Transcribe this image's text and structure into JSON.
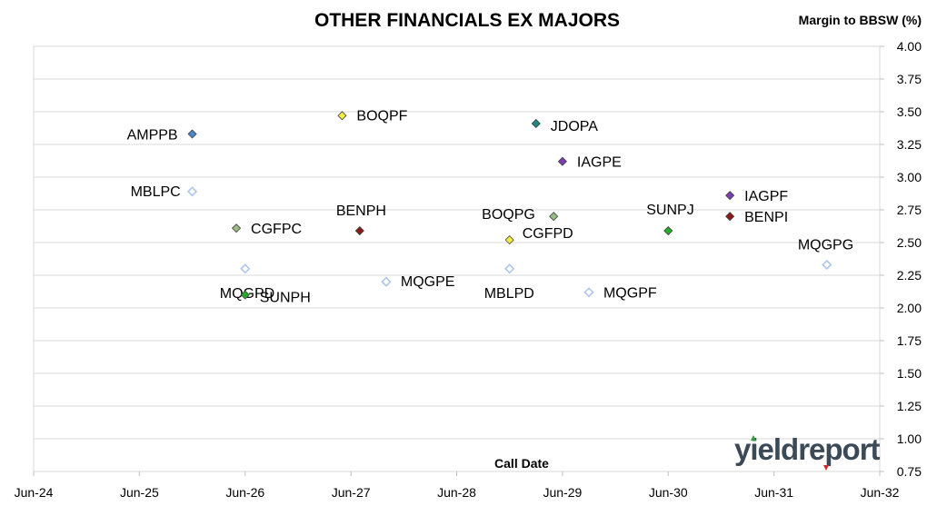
{
  "chart_data": {
    "type": "scatter",
    "title": "OTHER FINANCIALS EX MAJORS",
    "xlabel": "Call Date",
    "ylabel": "Margin to BBSW (%)",
    "x_ticks": [
      "Jun-24",
      "Jun-25",
      "Jun-26",
      "Jun-27",
      "Jun-28",
      "Jun-29",
      "Jun-30",
      "Jun-31",
      "Jun-32"
    ],
    "xlim": [
      "Jun-24",
      "Jun-32"
    ],
    "ylim": [
      0.75,
      4.0
    ],
    "y_ticks": [
      "0.75",
      "1.00",
      "1.25",
      "1.50",
      "1.75",
      "2.00",
      "2.25",
      "2.50",
      "2.75",
      "3.00",
      "3.25",
      "3.50",
      "3.75",
      "4.00"
    ],
    "grid": "horizontal",
    "points": [
      {
        "label": "AMPPB",
        "x": "Dec-25",
        "y": 3.33,
        "color": "#4a86c8",
        "style": "filled"
      },
      {
        "label": "MBLPC",
        "x": "Dec-25",
        "y": 2.89,
        "color": "#aec6e8",
        "style": "hollow"
      },
      {
        "label": "CGFPC",
        "x": "May-26",
        "y": 2.61,
        "color": "#9bbb85",
        "style": "filled"
      },
      {
        "label": "MQGPD",
        "x": "Jun-26",
        "y": 2.3,
        "color": "#aec6e8",
        "style": "hollow"
      },
      {
        "label": "SUNPH",
        "x": "Jun-26",
        "y": 2.1,
        "color": "#22b022",
        "style": "filled"
      },
      {
        "label": "BOQPF",
        "x": "May-27",
        "y": 3.47,
        "color": "#f0ee40",
        "style": "filled"
      },
      {
        "label": "BENPH",
        "x": "Jul-27",
        "y": 2.59,
        "color": "#8b1a1a",
        "style": "filled"
      },
      {
        "label": "MQGPE",
        "x": "Oct-27",
        "y": 2.2,
        "color": "#aec6e8",
        "style": "hollow"
      },
      {
        "label": "MBLPD",
        "x": "Dec-28",
        "y": 2.3,
        "color": "#aec6e8",
        "style": "hollow"
      },
      {
        "label": "CGFPD",
        "x": "Dec-28",
        "y": 2.52,
        "color": "#f0ee40",
        "style": "filled"
      },
      {
        "label": "JDOPA",
        "x": "Mar-29",
        "y": 3.41,
        "color": "#1a8a80",
        "style": "filled"
      },
      {
        "label": "BOQPG",
        "x": "May-29",
        "y": 2.7,
        "color": "#9bbb85",
        "style": "filled"
      },
      {
        "label": "IAGPE",
        "x": "Jun-29",
        "y": 3.12,
        "color": "#7b3fb0",
        "style": "filled"
      },
      {
        "label": "MQGPF",
        "x": "Sep-29",
        "y": 2.12,
        "color": "#aec6e8",
        "style": "hollow"
      },
      {
        "label": "SUNPJ",
        "x": "Jun-30",
        "y": 2.59,
        "color": "#22b022",
        "style": "filled"
      },
      {
        "label": "IAGPF",
        "x": "Jan-31",
        "y": 2.86,
        "color": "#7b3fb0",
        "style": "filled"
      },
      {
        "label": "BENPI",
        "x": "Jan-31",
        "y": 2.7,
        "color": "#8b1a1a",
        "style": "filled"
      },
      {
        "label": "MQGPG",
        "x": "Dec-31",
        "y": 2.33,
        "color": "#aec6e8",
        "style": "hollow"
      }
    ]
  },
  "logo": {
    "text": "yieldreport",
    "accent_up": "#2e9e3a",
    "accent_down": "#d42a2a"
  }
}
